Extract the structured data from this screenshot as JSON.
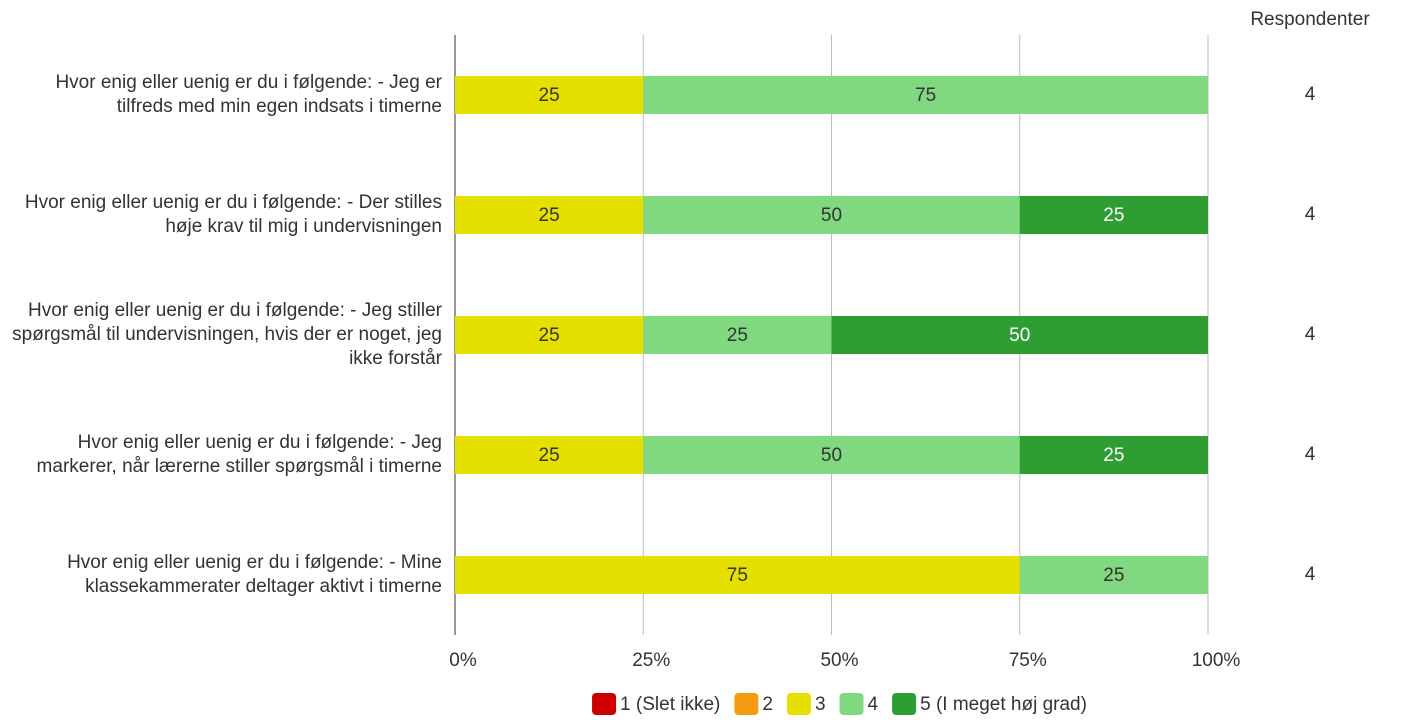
{
  "chart_data": {
    "type": "stacked-bar-horizontal",
    "categories": [
      "Hvor enig eller uenig er du i følgende: - Jeg er tilfreds med min egen indsats i timerne",
      "Hvor enig eller uenig er du i følgende: - Der stilles høje krav til mig i undervisningen",
      "Hvor enig eller uenig er du i følgende: - Jeg stiller spørgsmål til undervisningen, hvis der er noget, jeg ikke forstår",
      "Hvor enig eller uenig er du i følgende: - Jeg markerer, når lærerne stiller spørgsmål i timerne",
      "Hvor enig eller uenig er du i følgende: - Mine klassekammerater deltager aktivt i timerne"
    ],
    "series": [
      {
        "name": "1 (Slet ikke)",
        "color": "#cc0000",
        "values": [
          0,
          0,
          0,
          0,
          0
        ]
      },
      {
        "name": "2",
        "color": "#f39c12",
        "values": [
          0,
          0,
          0,
          0,
          0
        ]
      },
      {
        "name": "3",
        "color": "#e6e000",
        "values": [
          25,
          25,
          25,
          25,
          75
        ]
      },
      {
        "name": "4",
        "color": "#80d980",
        "values": [
          75,
          50,
          25,
          50,
          25
        ]
      },
      {
        "name": "5 (I meget høj grad)",
        "color": "#2e9e33",
        "values": [
          0,
          25,
          50,
          25,
          0
        ]
      }
    ],
    "xlim": [
      0,
      100
    ],
    "xticks": [
      {
        "value": 0,
        "label": "0%"
      },
      {
        "value": 25,
        "label": "25%"
      },
      {
        "value": 50,
        "label": "50%"
      },
      {
        "value": 75,
        "label": "75%"
      },
      {
        "value": 100,
        "label": "100%"
      }
    ],
    "grid": true,
    "respondents_title": "Respondenter",
    "respondents": [
      4,
      4,
      4,
      4,
      4
    ]
  }
}
